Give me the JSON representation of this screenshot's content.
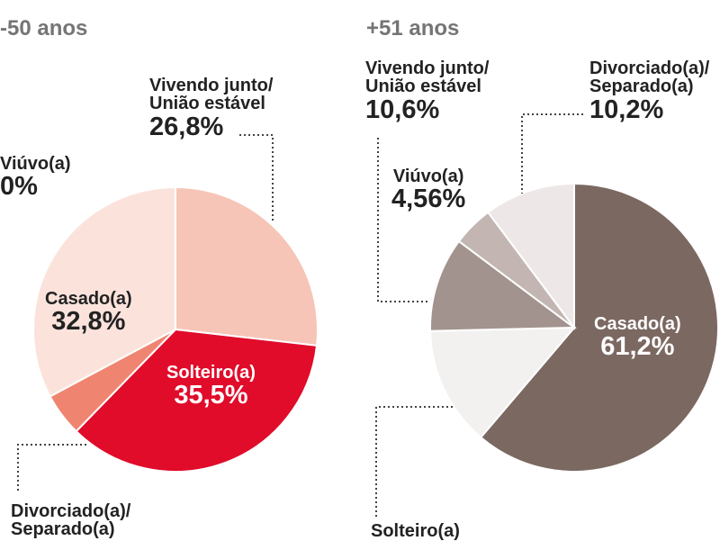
{
  "chart_data": [
    {
      "type": "pie",
      "title": "-50 anos",
      "slices": [
        {
          "label": "Vivendo junto/\nUnião estável",
          "value": 26.8,
          "display": "26,8%",
          "color": "#f6c5b7"
        },
        {
          "label": "Solteiro(a)",
          "value": 35.5,
          "display": "35,5%",
          "color": "#e10b2a"
        },
        {
          "label": "Divorciado(a)/\nSeparado(a)",
          "value": 4.9,
          "display": "",
          "color": "#ef8570"
        },
        {
          "label": "Casado(a)",
          "value": 32.8,
          "display": "32,8%",
          "color": "#fbe3dc"
        },
        {
          "label": "Viúvo(a)",
          "value": 0,
          "display": "0%",
          "color": "#fbe3dc"
        }
      ]
    },
    {
      "type": "pie",
      "title": "+51 anos",
      "slices": [
        {
          "label": "Casado(a)",
          "value": 61.2,
          "display": "61,2%",
          "color": "#7b6861"
        },
        {
          "label": "Solteiro(a)",
          "value": 13.4,
          "display": "",
          "color": "#f3f1f0"
        },
        {
          "label": "Vivendo junto/\nUnião estável",
          "value": 10.6,
          "display": "10,6%",
          "color": "#a2938e"
        },
        {
          "label": "Viúvo(a)",
          "value": 4.56,
          "display": "4,56%",
          "color": "#c3b6b2"
        },
        {
          "label": "Divorciado(a)/\nSeparado(a)",
          "value": 10.2,
          "display": "10,2%",
          "color": "#ede8e7"
        }
      ]
    }
  ],
  "left": {
    "heading": "-50 anos",
    "vivendo": {
      "l1": "Vivendo junto/",
      "l2": "União estável",
      "val": "26,8%"
    },
    "viuvo": {
      "l1": "Viúvo(a)",
      "val": "0%"
    },
    "casado": {
      "l1": "Casado(a)",
      "val": "32,8%"
    },
    "solteiro": {
      "l1": "Solteiro(a)",
      "val": "35,5%"
    },
    "divorciado": {
      "l1": "Divorciado(a)/",
      "l2": "Separado(a)"
    }
  },
  "right": {
    "heading": "+51 anos",
    "vivendo": {
      "l1": "Vivendo junto/",
      "l2": "União estável",
      "val": "10,6%"
    },
    "divorciado": {
      "l1": "Divorciado(a)/",
      "l2": "Separado(a)",
      "val": "10,2%"
    },
    "viuvo": {
      "l1": "Viúvo(a)",
      "val": "4,56%"
    },
    "casado": {
      "l1": "Casado(a)",
      "val": "61,2%"
    },
    "solteiro": {
      "l1": "Solteiro(a)"
    }
  }
}
